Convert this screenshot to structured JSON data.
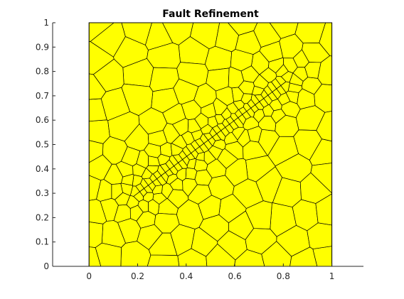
{
  "chart_data": {
    "type": "polygon-mesh",
    "title": "Fault Refinement",
    "xlabel": "",
    "ylabel": "",
    "xlim": [
      -0.15,
      1.13
    ],
    "ylim": [
      0,
      1
    ],
    "xticks": [
      0,
      0.2,
      0.4,
      0.6,
      0.8,
      1
    ],
    "xtick_labels": [
      "0",
      "0.2",
      "0.4",
      "0.6",
      "0.8",
      "1"
    ],
    "yticks": [
      0,
      0.1,
      0.2,
      0.3,
      0.4,
      0.5,
      0.6,
      0.7,
      0.8,
      0.9,
      1
    ],
    "ytick_labels": [
      "0",
      "0.1",
      "0.2",
      "0.3",
      "0.4",
      "0.5",
      "0.6",
      "0.7",
      "0.8",
      "0.9",
      "1"
    ],
    "domain": {
      "x": [
        0,
        1
      ],
      "y": [
        0,
        1
      ]
    },
    "fault": {
      "start": [
        0.2,
        0.3
      ],
      "end": [
        0.8,
        0.75
      ]
    },
    "fill_color": "#ffff00",
    "edge_color": "#000000",
    "grid": false
  }
}
